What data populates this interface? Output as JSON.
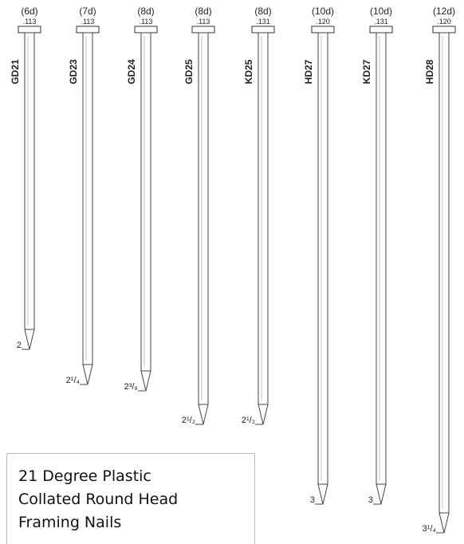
{
  "nails": [
    {
      "size": "(6d)",
      "gauge": ".113",
      "code": "GD21",
      "length": "2"
    },
    {
      "size": "(7d)",
      "gauge": ".113",
      "code": "GD23",
      "length": "2¹/₄"
    },
    {
      "size": "(8d)",
      "gauge": ".113",
      "code": "GD24",
      "length": "2³/₈"
    },
    {
      "size": "(8d)",
      "gauge": ".113",
      "code": "GD25",
      "length": "2¹/₂"
    },
    {
      "size": "(8d)",
      "gauge": ".131",
      "code": "KD25",
      "length": "2¹/₂"
    },
    {
      "size": "(10d)",
      "gauge": ".120",
      "code": "HD27",
      "length": "3"
    },
    {
      "size": "(10d)",
      "gauge": ".131",
      "code": "KD27",
      "length": "3"
    },
    {
      "size": "(12d)",
      "gauge": ".120",
      "code": "HD28",
      "length": "3¹/₄"
    }
  ],
  "caption": {
    "lines": [
      "21 Degree Plastic",
      "Collated Round Head",
      "Framing Nails"
    ]
  }
}
